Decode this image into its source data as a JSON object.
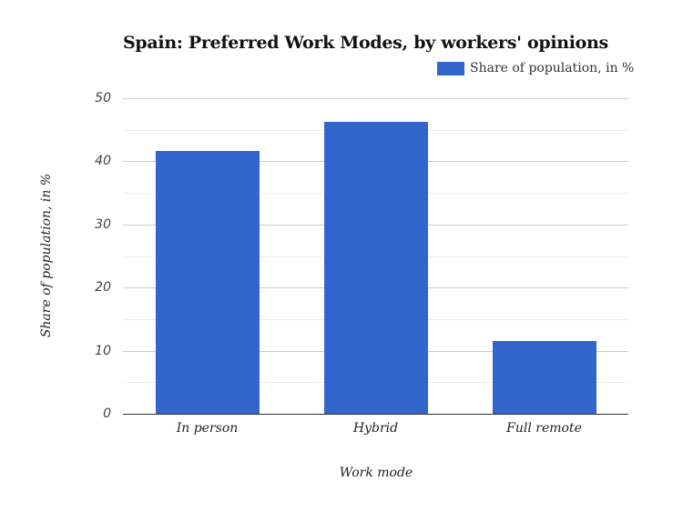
{
  "chart_data": {
    "type": "bar",
    "title": "Spain: Preferred Work Modes, by workers' opinions",
    "categories": [
      "In person",
      "Hybrid",
      "Full remote"
    ],
    "series": [
      {
        "name": "Share of population, in %",
        "values": [
          41.6,
          46.3,
          11.5
        ],
        "color": "#3366cc"
      }
    ],
    "xlabel": "Work mode",
    "ylabel": "Share of population, in %",
    "ylim": [
      0,
      50
    ],
    "yticks": [
      0,
      10,
      20,
      30,
      40,
      50
    ],
    "grid": true,
    "legend_position": "top-right"
  }
}
